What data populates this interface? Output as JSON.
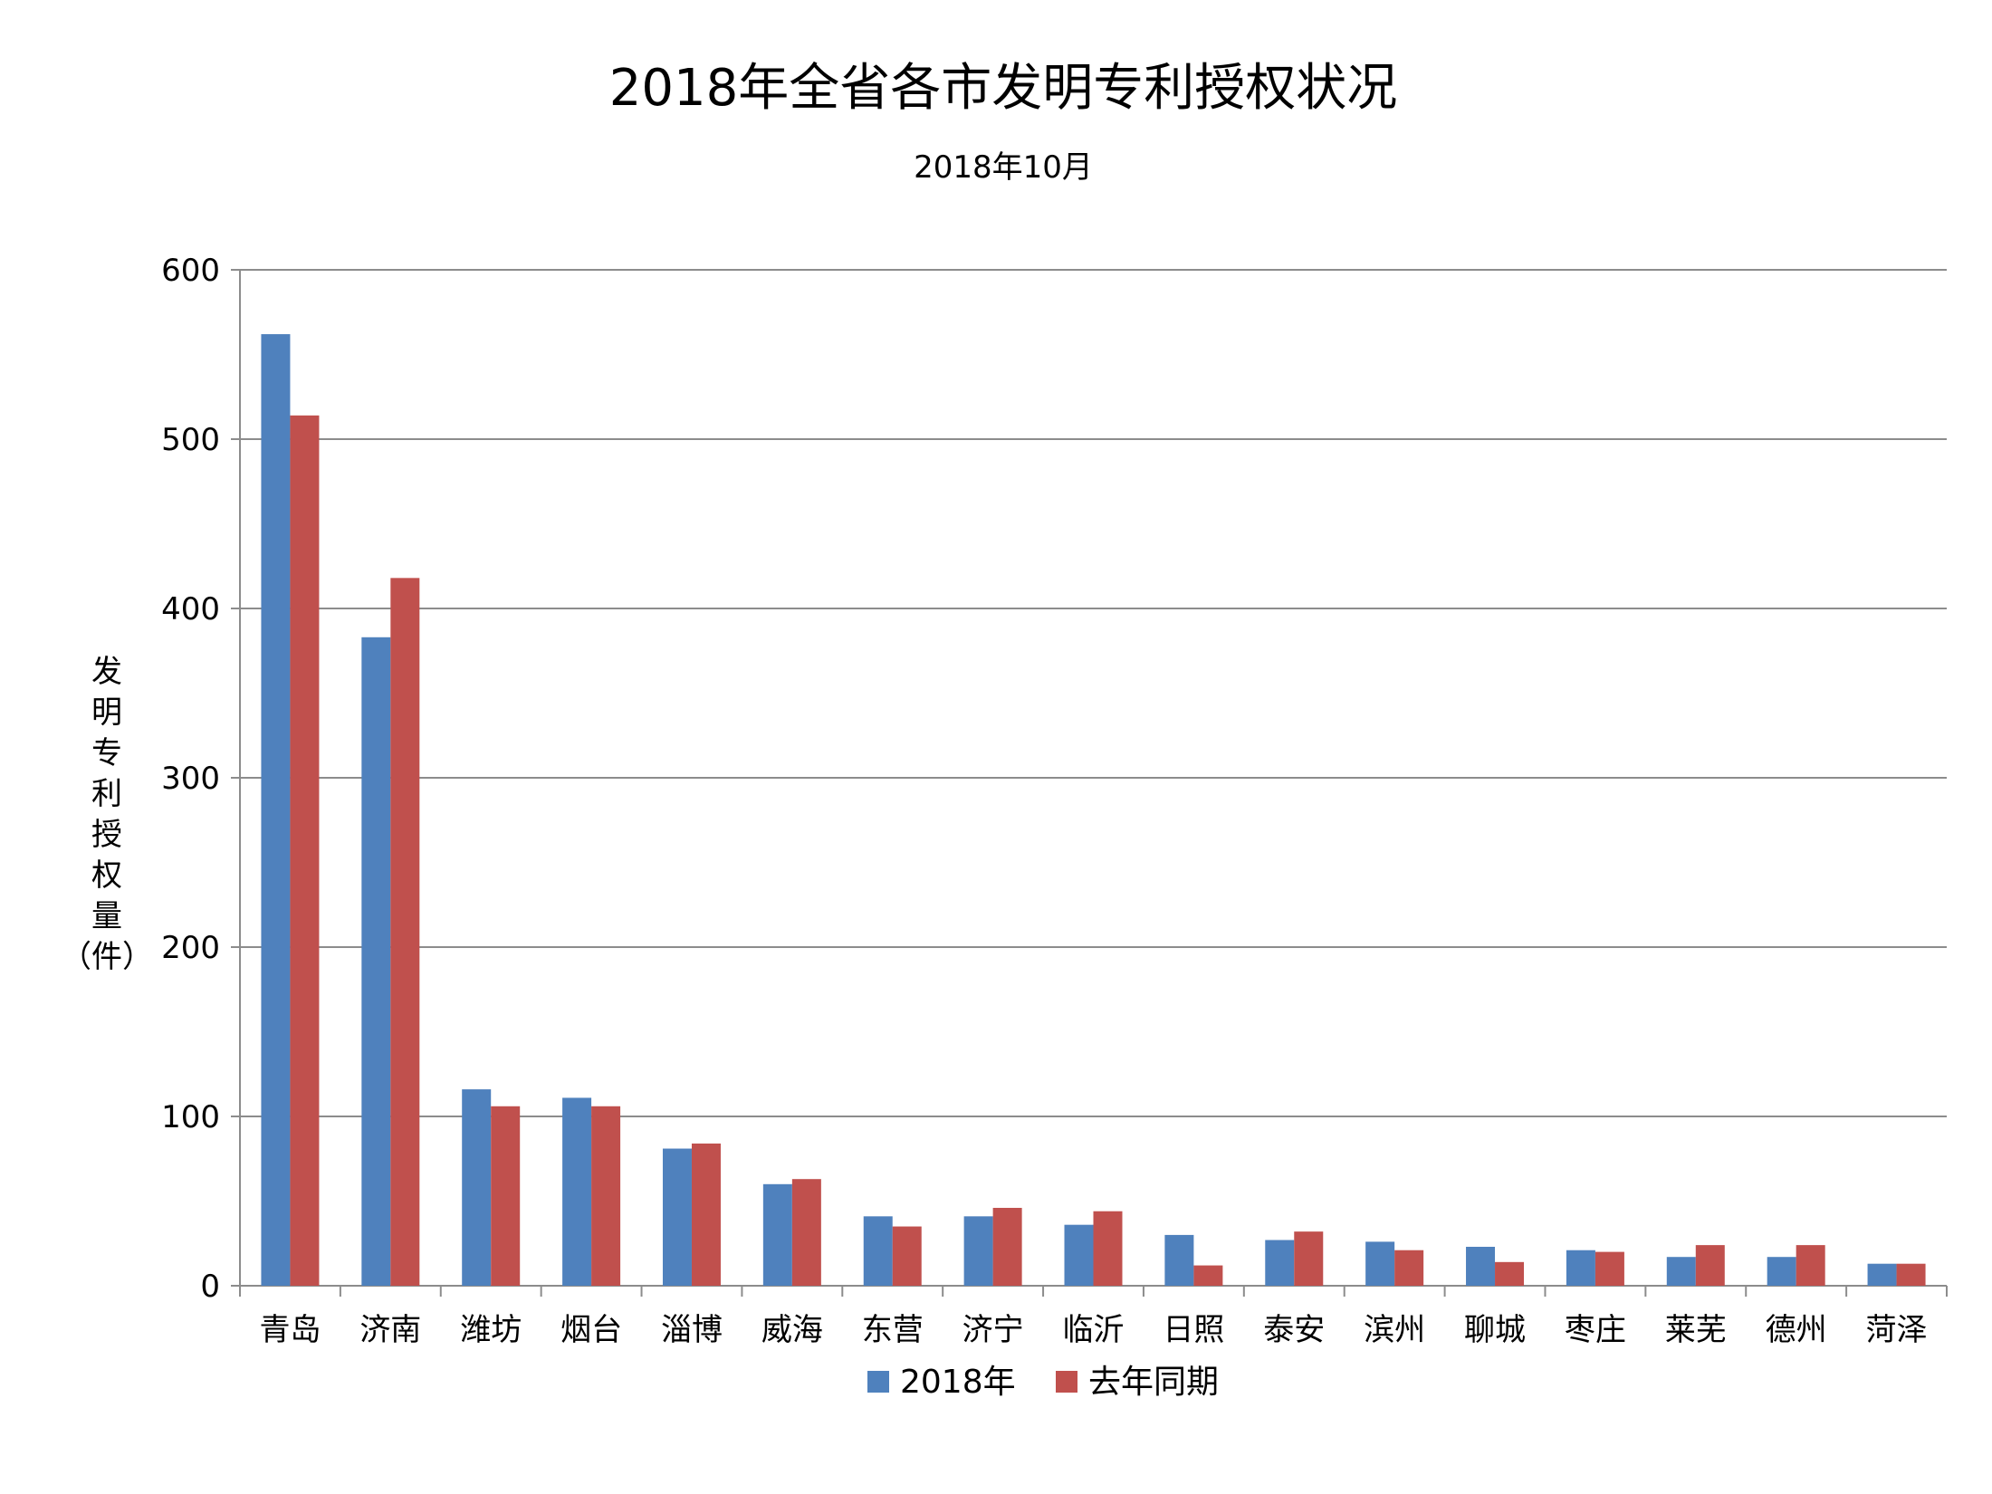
{
  "chart_data": {
    "type": "bar",
    "title": "2018年全省各市发明专利授权状况",
    "subtitle": "2018年10月",
    "xlabel": "",
    "ylabel": "发明专利授权量（件）",
    "ylim": [
      0,
      600
    ],
    "yticks": [
      0,
      100,
      200,
      300,
      400,
      500,
      600
    ],
    "grid": true,
    "legend_position": "bottom",
    "categories": [
      "青岛",
      "济南",
      "潍坊",
      "烟台",
      "淄博",
      "威海",
      "东营",
      "济宁",
      "临沂",
      "日照",
      "泰安",
      "滨州",
      "聊城",
      "枣庄",
      "莱芜",
      "德州",
      "菏泽"
    ],
    "series": [
      {
        "name": "2018年",
        "color": "#4f81bd",
        "values": [
          562,
          383,
          116,
          111,
          81,
          60,
          41,
          41,
          36,
          30,
          27,
          26,
          23,
          21,
          17,
          17,
          13
        ]
      },
      {
        "name": "去年同期",
        "color": "#c0504d",
        "values": [
          514,
          418,
          106,
          106,
          84,
          63,
          35,
          46,
          44,
          12,
          32,
          21,
          14,
          20,
          24,
          24,
          13
        ]
      }
    ]
  }
}
